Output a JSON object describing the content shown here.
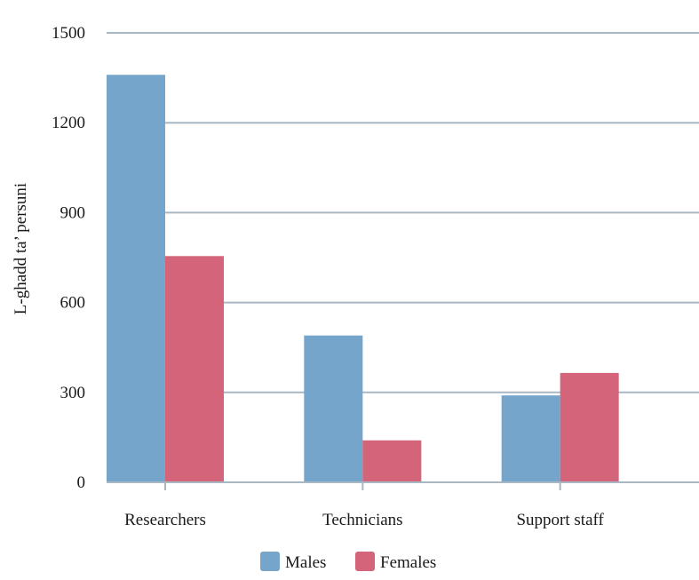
{
  "chart_data": {
    "type": "bar",
    "categories": [
      "Researchers",
      "Technicians",
      "Support staff"
    ],
    "series": [
      {
        "name": "Males",
        "values": [
          1360,
          490,
          290
        ],
        "color": "#75a5cb"
      },
      {
        "name": "Females",
        "values": [
          755,
          140,
          365
        ],
        "color": "#d36479"
      }
    ],
    "ylabel": "L-ghadd ta’ persuni",
    "ylim": [
      0,
      1500
    ],
    "yticks": [
      0,
      300,
      600,
      900,
      1200,
      1500
    ],
    "grid": true,
    "legend_position": "bottom"
  }
}
